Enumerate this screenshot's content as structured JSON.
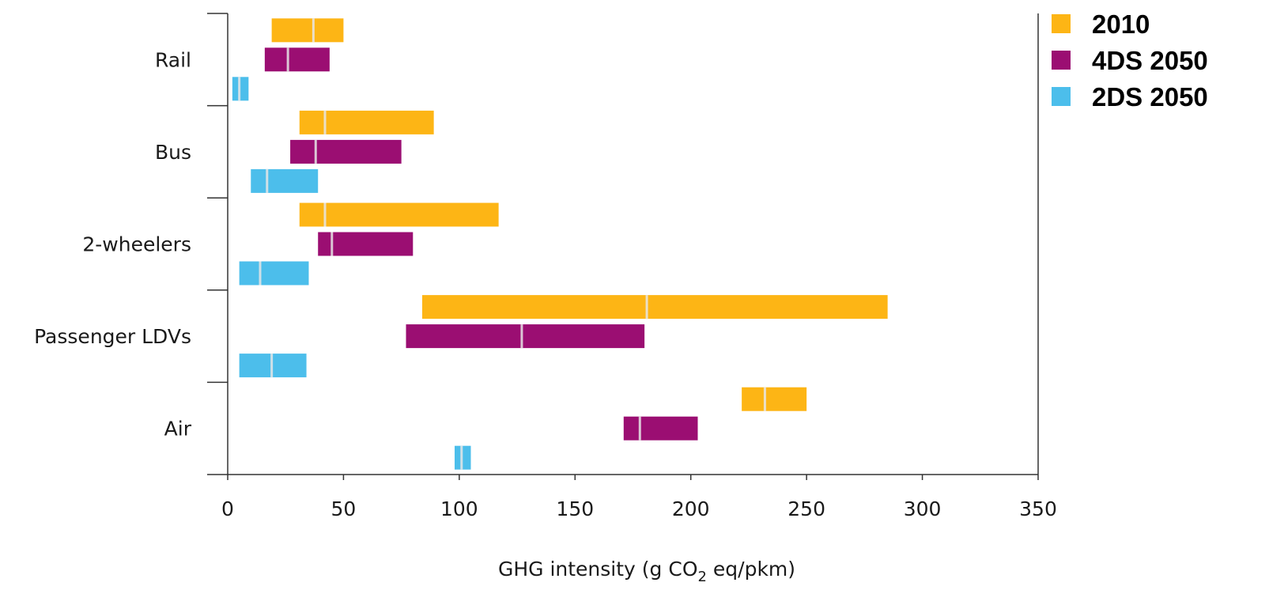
{
  "chart_data": {
    "type": "bar",
    "orientation": "horizontal-range",
    "xlabel": "GHG intensity (g CO₂ eq/pkm)",
    "xlim": [
      0,
      350
    ],
    "xticks": [
      0,
      50,
      100,
      150,
      200,
      250,
      300,
      350
    ],
    "categories": [
      "Rail",
      "Bus",
      "2-wheelers",
      "Passenger LDVs",
      "Air"
    ],
    "legend_position": "top-right",
    "grid": false,
    "series": [
      {
        "name": "2010",
        "color": "#FDB515",
        "ranges": [
          {
            "low": 19,
            "high": 50,
            "mid": 37
          },
          {
            "low": 31,
            "high": 89,
            "mid": 42
          },
          {
            "low": 31,
            "high": 117,
            "mid": 42
          },
          {
            "low": 84,
            "high": 285,
            "mid": 181
          },
          {
            "low": 222,
            "high": 250,
            "mid": 232
          }
        ]
      },
      {
        "name": "4DS 2050",
        "color": "#9B0E72",
        "ranges": [
          {
            "low": 16,
            "high": 44,
            "mid": 26
          },
          {
            "low": 27,
            "high": 75,
            "mid": 38
          },
          {
            "low": 39,
            "high": 80,
            "mid": 45
          },
          {
            "low": 77,
            "high": 180,
            "mid": 127
          },
          {
            "low": 171,
            "high": 203,
            "mid": 178
          }
        ]
      },
      {
        "name": "2DS 2050",
        "color": "#4CBEEB",
        "ranges": [
          {
            "low": 2,
            "high": 9,
            "mid": 5
          },
          {
            "low": 10,
            "high": 39,
            "mid": 17
          },
          {
            "low": 5,
            "high": 35,
            "mid": 14
          },
          {
            "low": 5,
            "high": 34,
            "mid": 19
          },
          {
            "low": 98,
            "high": 105,
            "mid": 101
          }
        ]
      }
    ]
  }
}
